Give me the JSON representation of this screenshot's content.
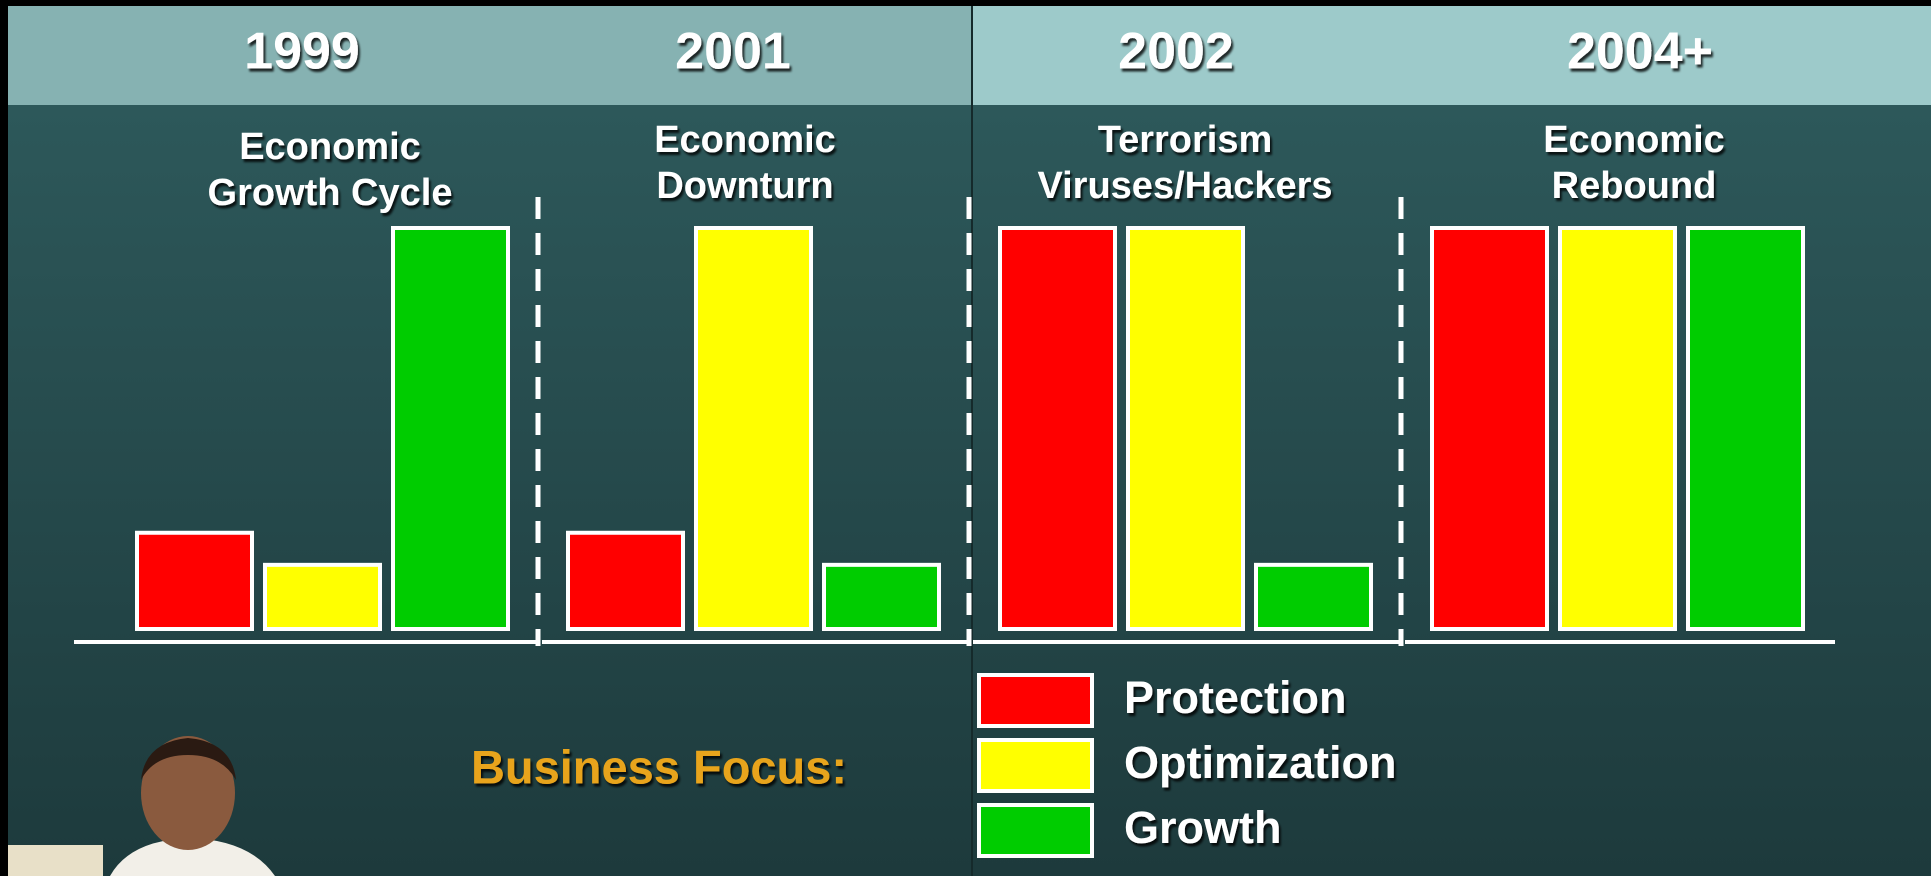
{
  "chart_data": {
    "type": "bar",
    "categories": [
      "1999",
      "2001",
      "2002",
      "2004+"
    ],
    "category_subtitles": [
      [
        "Economic",
        "Growth Cycle"
      ],
      [
        "Economic",
        "Downturn"
      ],
      [
        "Terrorism",
        "Viruses/Hackers"
      ],
      [
        "Economic",
        "Rebound"
      ]
    ],
    "series": [
      {
        "name": "Protection",
        "color": "#ff0000",
        "values": [
          24,
          24,
          100,
          100
        ]
      },
      {
        "name": "Optimization",
        "color": "#ffff00",
        "values": [
          16,
          100,
          100,
          100
        ]
      },
      {
        "name": "Growth",
        "color": "#00cc00",
        "values": [
          100,
          16,
          16,
          100
        ]
      }
    ],
    "ylim": [
      0,
      100
    ],
    "legend_title": "Business Focus:"
  }
}
